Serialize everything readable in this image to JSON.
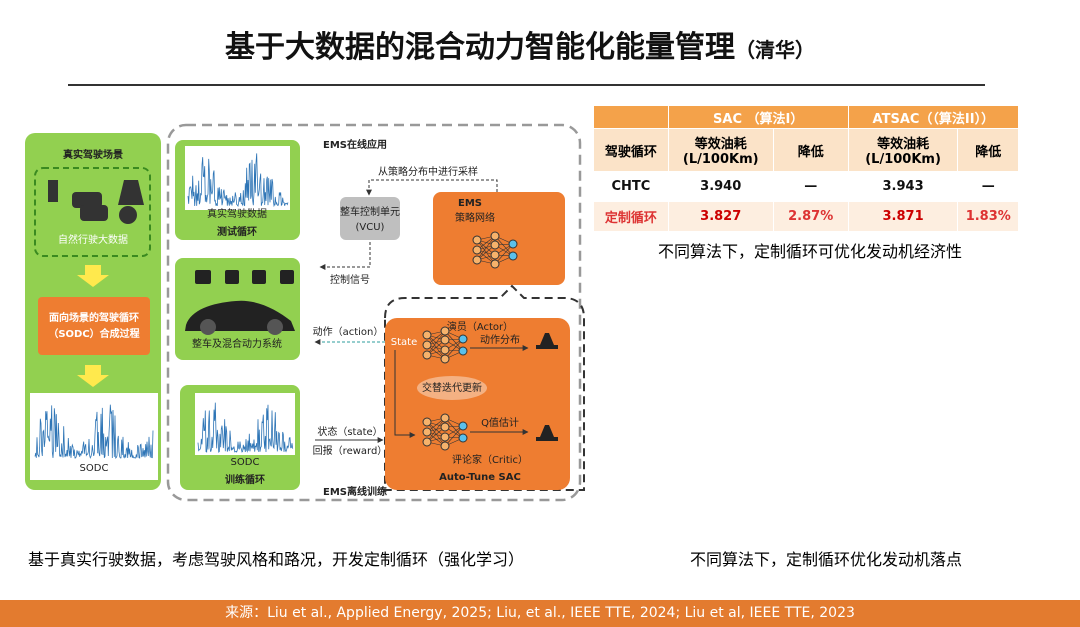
{
  "header": {
    "title": "基于大数据的混合动力智能化能量管理",
    "affiliation": "（清华）"
  },
  "diagram": {
    "real_scene": "真实驾驶场景",
    "natural_data": "自然行驶大数据",
    "sodc_process": [
      "面向场景的驾驶循环",
      "（SODC）合成过程"
    ],
    "sodc_left": "SODC",
    "real_data": "真实驾驶数据",
    "test_cycle": "测试循环",
    "vehicle": "整车及混合动力系统",
    "sodc_train": "SODC",
    "train_cycle": "训练循环",
    "ems_online": "EMS在线应用",
    "sample": "从策略分布中进行采样",
    "vcu": [
      "整车控制单元",
      "(VCU)"
    ],
    "control_signal": "控制信号",
    "ems": "EMS",
    "policy_net": "策略网络",
    "action": "动作（action）",
    "state_in": "状态（state）",
    "reward": "回报（reward）",
    "state": "State",
    "actor": "演员（Actor）",
    "action_dist": "动作分布",
    "alternate": "交替迭代更新",
    "q_est": "Q值估计",
    "critic": "评论家（Critic）",
    "auto_tune": "Auto-Tune SAC",
    "ems_offline": "EMS离线训练"
  },
  "table": {
    "groups": [
      "SAC （算法I）",
      "ATSAC（（算法II））"
    ],
    "subheaders": [
      "驾驶循环",
      "等效油耗 (L/100Km)",
      "降低",
      "等效油耗 (L/100Km)",
      "降低"
    ],
    "rows": [
      [
        "CHTC",
        "3.940",
        "—",
        "3.943",
        "—"
      ],
      [
        "定制循环",
        "3.827",
        "2.87%",
        "3.871",
        "1.83%"
      ]
    ],
    "note": "不同算法下，定制循环可优化发动机经济性"
  },
  "captions": {
    "left": "基于真实行驶数据，考虑驾驶风格和路况，开发定制循环（强化学习）",
    "right": "不同算法下，定制循环优化发动机落点"
  },
  "footer": "来源：Liu et al., Applied Energy, 2025; Liu, et al., IEEE TTE, 2024; Liu et al, IEEE TTE, 2023"
}
